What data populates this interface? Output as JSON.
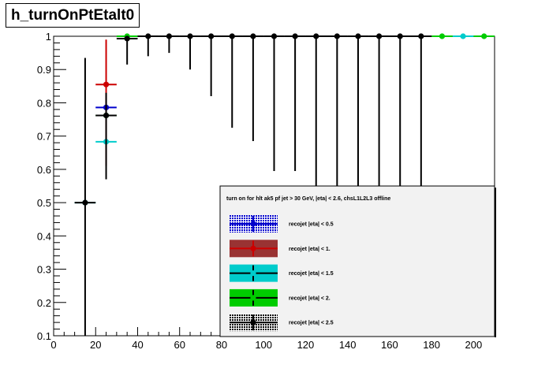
{
  "title": "h_turnOnPtEtalt0",
  "chart_data": {
    "type": "scatter",
    "title": "h_turnOnPtEtalt0",
    "xlabel": "",
    "ylabel": "",
    "xlim": [
      0,
      210
    ],
    "ylim": [
      0.1,
      1.0
    ],
    "x_ticks": [
      0,
      20,
      40,
      60,
      80,
      100,
      120,
      140,
      160,
      180,
      200
    ],
    "y_ticks": [
      0.1,
      0.2,
      0.3,
      0.4,
      0.5,
      0.6,
      0.7,
      0.8,
      0.9,
      1
    ],
    "grid": false,
    "legend": {
      "placement": "bottom-right",
      "header": "turn on for hlt ak5 pf jet > 30 GeV, |eta| < 2.6, chsL1L2L3 offline"
    },
    "series": [
      {
        "name": "recojet |eta| < 0.5",
        "color": "#0000cc",
        "fill": "#0000cc",
        "pattern": "dots",
        "points": [
          {
            "x": 25,
            "y": 0.786,
            "lo": 0.786,
            "hi": 0.786
          }
        ]
      },
      {
        "name": "recojet |eta| < 1.",
        "color": "#cc0000",
        "fill": "#993333",
        "pattern": "solid",
        "points": [
          {
            "x": 25,
            "y": 0.855,
            "lo": 0.61,
            "hi": 0.99
          }
        ]
      },
      {
        "name": "recojet |eta| < 1.5",
        "color": "#00cccc",
        "fill": "#00cccc",
        "pattern": "solid",
        "points": [
          {
            "x": 15,
            "y": 0.5,
            "lo": 0.5,
            "hi": 0.5
          },
          {
            "x": 25,
            "y": 0.683,
            "lo": 0.683,
            "hi": 0.683
          },
          {
            "x": 195,
            "y": 1.0,
            "lo": 1.0,
            "hi": 1.0
          }
        ]
      },
      {
        "name": "recojet |eta| < 2.",
        "color": "#00cc00",
        "fill": "#00cc00",
        "pattern": "solid",
        "points": [
          {
            "x": 25,
            "y": 0.762,
            "lo": 0.762,
            "hi": 0.762
          },
          {
            "x": 35,
            "y": 1.0,
            "lo": 1.0,
            "hi": 1.0
          },
          {
            "x": 185,
            "y": 1.0,
            "lo": 1.0,
            "hi": 1.0
          },
          {
            "x": 205,
            "y": 1.0,
            "lo": 1.0,
            "hi": 1.0
          }
        ]
      },
      {
        "name": "recojet |eta| < 2.5",
        "color": "#000000",
        "fill": "#000000",
        "pattern": "dots",
        "points": [
          {
            "x": 15,
            "y": 0.5,
            "lo": 0.0,
            "hi": 0.935
          },
          {
            "x": 25,
            "y": 0.762,
            "lo": 0.57,
            "hi": 0.83
          },
          {
            "x": 35,
            "y": 0.993,
            "lo": 0.915,
            "hi": 1.0
          },
          {
            "x": 45,
            "y": 1.0,
            "lo": 0.94,
            "hi": 1.0
          },
          {
            "x": 55,
            "y": 1.0,
            "lo": 0.95,
            "hi": 1.0
          },
          {
            "x": 65,
            "y": 1.0,
            "lo": 0.9,
            "hi": 1.0
          },
          {
            "x": 75,
            "y": 1.0,
            "lo": 0.82,
            "hi": 1.0
          },
          {
            "x": 85,
            "y": 1.0,
            "lo": 0.725,
            "hi": 1.0
          },
          {
            "x": 95,
            "y": 1.0,
            "lo": 0.685,
            "hi": 1.0
          },
          {
            "x": 105,
            "y": 1.0,
            "lo": 0.595,
            "hi": 1.0
          },
          {
            "x": 115,
            "y": 1.0,
            "lo": 0.595,
            "hi": 1.0
          },
          {
            "x": 125,
            "y": 1.0,
            "lo": 0.0,
            "hi": 1.0
          },
          {
            "x": 135,
            "y": 1.0,
            "lo": 0.0,
            "hi": 1.0
          },
          {
            "x": 145,
            "y": 1.0,
            "lo": 0.0,
            "hi": 1.0
          },
          {
            "x": 155,
            "y": 1.0,
            "lo": 0.0,
            "hi": 1.0
          },
          {
            "x": 165,
            "y": 1.0,
            "lo": 0.0,
            "hi": 1.0
          },
          {
            "x": 175,
            "y": 1.0,
            "lo": 0.0,
            "hi": 1.0
          }
        ]
      }
    ]
  }
}
